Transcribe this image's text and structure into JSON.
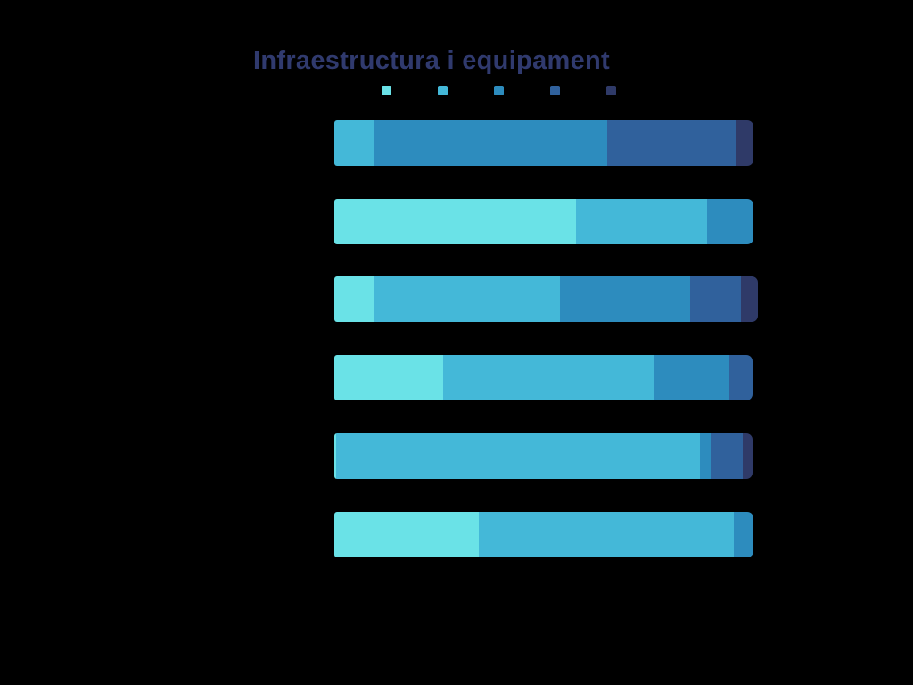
{
  "page": {
    "background_color": "#000000"
  },
  "chart_data": {
    "type": "bar",
    "orientation": "horizontal",
    "stacked": true,
    "title": "Infraestructura i equipament",
    "title_color": "#303A6E",
    "rows": 6,
    "categories": [
      "",
      "",
      "",
      "",
      "",
      ""
    ],
    "category_labels_visible": false,
    "legend_position": "top",
    "legend_labels_visible": false,
    "xlim": [
      0,
      100
    ],
    "grid": false,
    "unit": "percent-of-bar-width (estimated from pixel widths; numeric labels not rendered in image)",
    "series": [
      {
        "name": "light-cyan",
        "color": "#6AE2E7",
        "values": [
          0,
          57.7,
          9.4,
          26.0,
          0.4,
          34.5
        ]
      },
      {
        "name": "cyan",
        "color": "#44B8D8",
        "values": [
          9.6,
          31.3,
          44.5,
          50.2,
          86.8,
          60.9
        ]
      },
      {
        "name": "blue",
        "color": "#2D8CBE",
        "values": [
          55.5,
          11.1,
          30.9,
          18.1,
          2.8,
          4.5
        ]
      },
      {
        "name": "dark-blue",
        "color": "#30619C",
        "values": [
          30.9,
          0,
          12.3,
          5.5,
          7.4,
          0
        ]
      },
      {
        "name": "navy",
        "color": "#2F3A68",
        "values": [
          4.0,
          0,
          4.0,
          0,
          2.3,
          0
        ]
      }
    ]
  }
}
